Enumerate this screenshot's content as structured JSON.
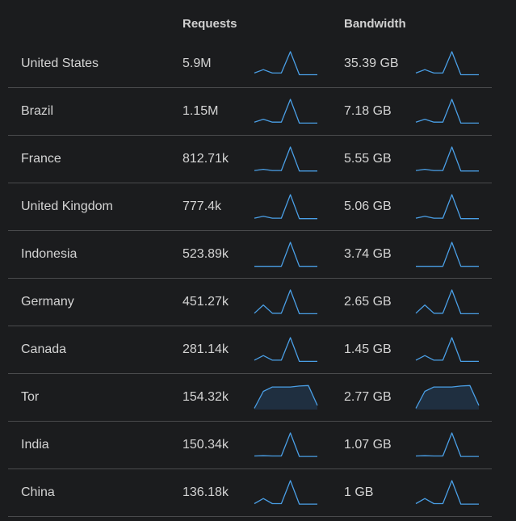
{
  "header": {
    "requests_label": "Requests",
    "bandwidth_label": "Bandwidth"
  },
  "colors": {
    "background": "#1b1c1e",
    "sparkline": "#4a9fe6",
    "divider": "#4a4b4d"
  },
  "rows": [
    {
      "country": "United States",
      "requests": "5.9M",
      "bandwidth": "35.39 GB",
      "trend": [
        0.12,
        0.26,
        0.12,
        0.12,
        1.0,
        0.05,
        0.05,
        0.05
      ]
    },
    {
      "country": "Brazil",
      "requests": "1.15M",
      "bandwidth": "7.18 GB",
      "trend": [
        0.06,
        0.18,
        0.06,
        0.06,
        1.0,
        0.02,
        0.02,
        0.02
      ]
    },
    {
      "country": "France",
      "requests": "812.71k",
      "bandwidth": "5.55 GB",
      "trend": [
        0.03,
        0.08,
        0.03,
        0.03,
        1.0,
        0.01,
        0.01,
        0.01
      ]
    },
    {
      "country": "United Kingdom",
      "requests": "777.4k",
      "bandwidth": "5.06 GB",
      "trend": [
        0.03,
        0.11,
        0.03,
        0.03,
        1.0,
        0.01,
        0.01,
        0.01
      ]
    },
    {
      "country": "Indonesia",
      "requests": "523.89k",
      "bandwidth": "3.74 GB",
      "trend": [
        0.01,
        0.01,
        0.01,
        0.01,
        1.0,
        0.01,
        0.01,
        0.01
      ]
    },
    {
      "country": "Germany",
      "requests": "451.27k",
      "bandwidth": "2.65 GB",
      "trend": [
        0.04,
        0.38,
        0.04,
        0.04,
        1.0,
        0.02,
        0.02,
        0.02
      ]
    },
    {
      "country": "Canada",
      "requests": "281.14k",
      "bandwidth": "1.45 GB",
      "trend": [
        0.07,
        0.26,
        0.07,
        0.07,
        1.0,
        0.02,
        0.02,
        0.02
      ]
    },
    {
      "country": "Tor",
      "requests": "154.32k",
      "bandwidth": "2.77 GB",
      "trend": [
        0.05,
        0.75,
        0.93,
        0.93,
        0.93,
        0.97,
        0.99,
        0.17
      ]
    },
    {
      "country": "India",
      "requests": "150.34k",
      "bandwidth": "1.07 GB",
      "trend": [
        0.05,
        0.06,
        0.05,
        0.05,
        1.0,
        0.03,
        0.03,
        0.03
      ]
    },
    {
      "country": "China",
      "requests": "136.18k",
      "bandwidth": "1 GB",
      "trend": [
        0.05,
        0.26,
        0.05,
        0.05,
        1.0,
        0.03,
        0.03,
        0.03
      ]
    }
  ]
}
